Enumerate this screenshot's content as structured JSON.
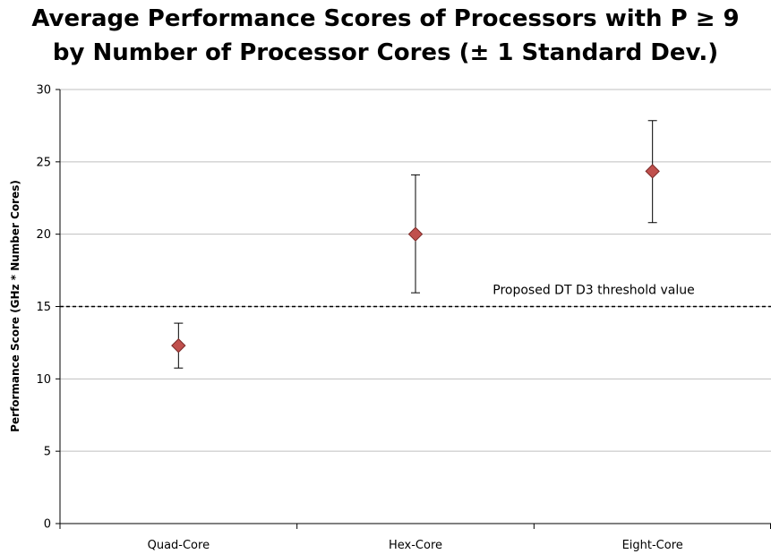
{
  "chart_data": {
    "type": "scatter",
    "title_lines": [
      "Average Performance Scores of Processors with P ≥ 9",
      "by Number of Processor Cores (± 1 Standard Dev.)"
    ],
    "ylabel": "Performance Score (GHz * Number Cores)",
    "xlabel": "",
    "categories": [
      "Quad-Core",
      "Hex-Core",
      "Eight-Core"
    ],
    "ylim": [
      0,
      30
    ],
    "yticks": [
      "0",
      "5",
      "10",
      "15",
      "20",
      "25",
      "30"
    ],
    "grid": true,
    "series": [
      {
        "values": [
          12.3,
          20.0,
          24.35
        ],
        "err_low": [
          10.75,
          15.95,
          20.8
        ],
        "err_high": [
          13.85,
          24.1,
          27.85
        ],
        "marker": "diamond",
        "color": "#c0504d"
      }
    ],
    "reference_line": {
      "value": 15,
      "label": "Proposed DT D3 threshold value",
      "style": "dashed"
    }
  }
}
